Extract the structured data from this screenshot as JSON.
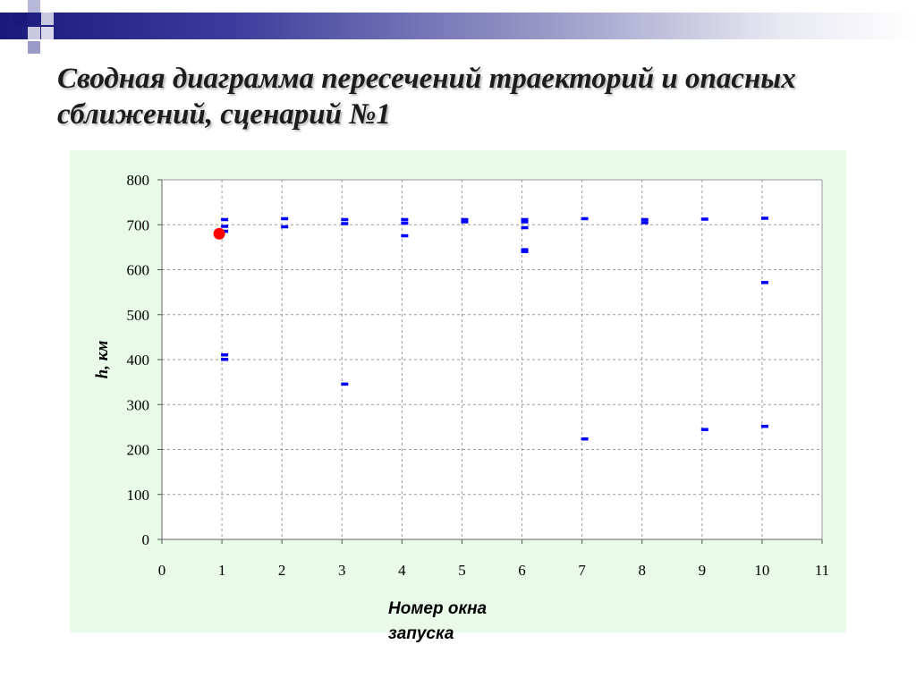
{
  "slide": {
    "title": "Сводная диаграмма пересечений траекторий и опасных сближений, сценарий №1",
    "colors": {
      "band_dark": "#1a1a7a",
      "decor_square_dark": "#1a1a7a",
      "decor_square_light": "#9a9ac8",
      "chart_background": "#e8fae8",
      "point_color": "#0000ff",
      "highlight_point_color": "#ff0000"
    }
  },
  "chart_data": {
    "type": "scatter",
    "title": "",
    "xlabel": "Номер окна запуска",
    "ylabel": "h, км",
    "xlim": [
      0,
      11
    ],
    "ylim": [
      0,
      800
    ],
    "x_ticks": [
      0,
      1,
      2,
      3,
      4,
      5,
      6,
      7,
      8,
      9,
      10,
      11
    ],
    "y_ticks": [
      0,
      100,
      200,
      300,
      400,
      500,
      600,
      700,
      800
    ],
    "grid": {
      "horizontal": "dashed",
      "vertical": "dashed"
    },
    "legend": "none",
    "series": [
      {
        "marker": "dash",
        "color": "#0000ff",
        "points": [
          [
            1,
            712
          ],
          [
            1,
            697
          ],
          [
            1,
            686
          ],
          [
            1,
            411
          ],
          [
            1,
            401
          ],
          [
            2,
            714
          ],
          [
            2,
            696
          ],
          [
            3,
            712
          ],
          [
            3,
            703
          ],
          [
            3,
            346
          ],
          [
            4,
            712
          ],
          [
            4,
            704
          ],
          [
            4,
            676
          ],
          [
            5,
            712
          ],
          [
            5,
            707
          ],
          [
            6,
            712
          ],
          [
            6,
            707
          ],
          [
            6,
            694
          ],
          [
            6,
            645
          ],
          [
            6,
            641
          ],
          [
            7,
            714
          ],
          [
            7,
            224
          ],
          [
            8,
            712
          ],
          [
            8,
            705
          ],
          [
            9,
            713
          ],
          [
            9,
            245
          ],
          [
            10,
            715
          ],
          [
            10,
            572
          ],
          [
            10,
            252
          ]
        ]
      },
      {
        "marker": "circle",
        "color": "#ff0000",
        "points": [
          [
            1,
            680
          ]
        ]
      }
    ]
  }
}
